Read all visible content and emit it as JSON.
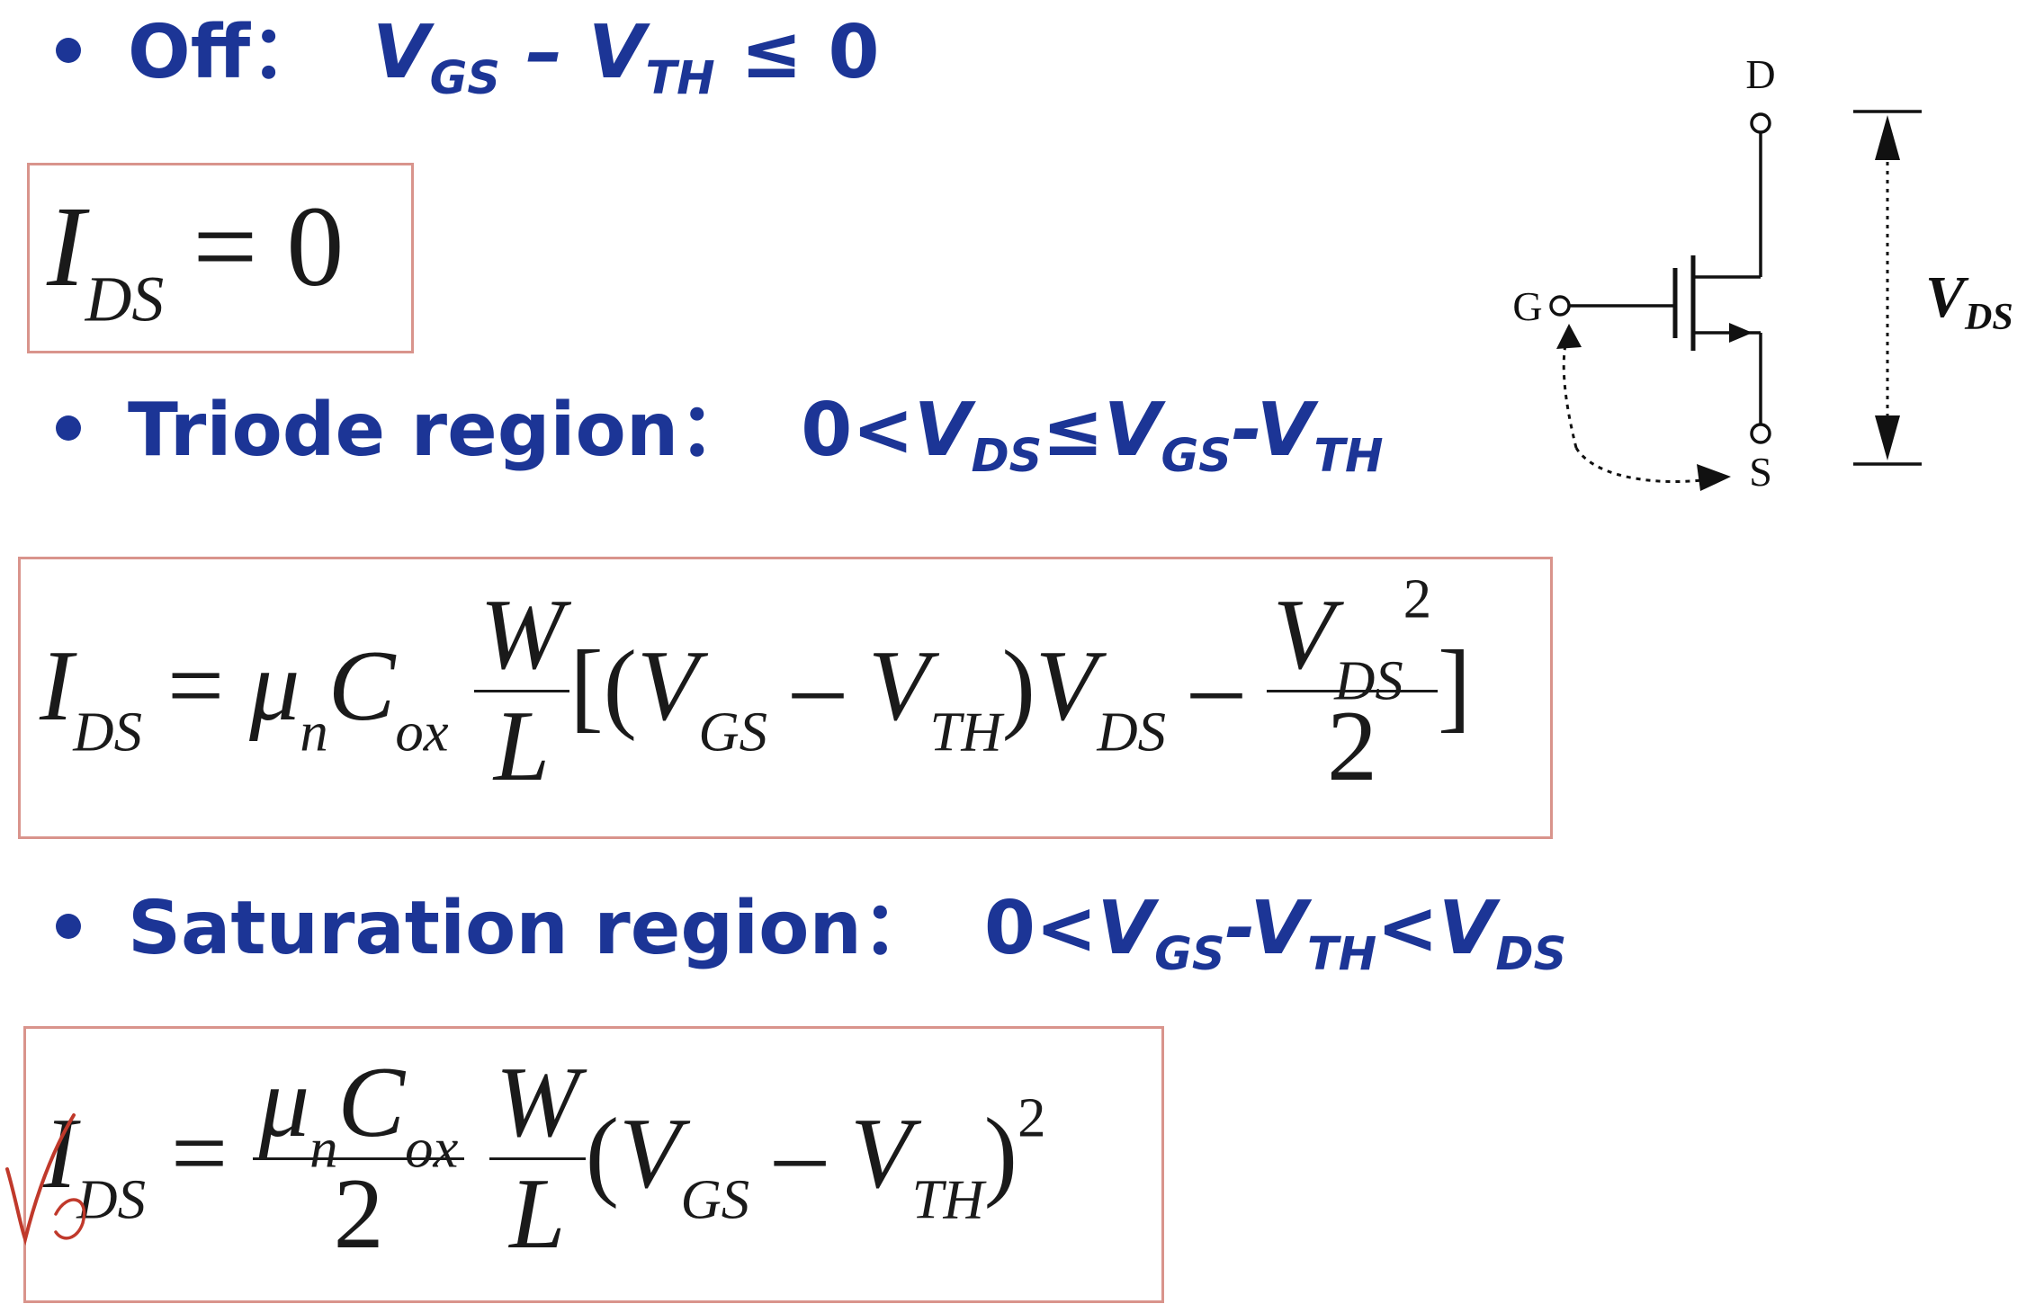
{
  "off": {
    "label": "Off：",
    "condition": {
      "v1": "V",
      "s1": "GS",
      "op": " – ",
      "v2": "V",
      "s2": "TH",
      "tail": " ≤ 0"
    }
  },
  "off_eq": {
    "lhs": "I",
    "lhs_sub": "DS",
    "rhs": " = 0"
  },
  "triode": {
    "label": "Triode region：",
    "condition": {
      "pre": "0<",
      "v1": "V",
      "s1": "DS",
      "op1": "≤",
      "v2": "V",
      "s2": "GS",
      "op2": "-",
      "v3": "V",
      "s3": "TH"
    }
  },
  "triode_eq": {
    "lhs": "I",
    "lhs_sub": "DS",
    "eq": " = ",
    "mu": "μ",
    "mu_sub": "n",
    "c": "C",
    "c_sub": "ox",
    "w": "W",
    "l": "L",
    "open": "[(",
    "vgs": "V",
    "vgs_sub": "GS",
    "minus": " – ",
    "vth": "V",
    "vth_sub": "TH",
    "close_paren": ")",
    "vds": "V",
    "vds_sub": "DS",
    "minus2": " – ",
    "frac_v": "V",
    "frac_sub": "DS",
    "frac_sup": "2",
    "frac_den": "2",
    "close": "]"
  },
  "sat": {
    "label": "Saturation region：",
    "condition": {
      "pre": "0<",
      "v1": "V",
      "s1": "GS",
      "op1": "-",
      "v2": "V",
      "s2": "TH",
      "op2": "<",
      "v3": "V",
      "s3": "DS"
    }
  },
  "sat_eq": {
    "lhs": "I",
    "lhs_sub": "DS",
    "eq": " = ",
    "mu": "μ",
    "mu_sub": "n",
    "c": "C",
    "c_sub": "ox",
    "den": "2",
    "w": "W",
    "l": "L",
    "open": "(",
    "vgs": "V",
    "vgs_sub": "GS",
    "minus": " – ",
    "vth": "V",
    "vth_sub": "TH",
    "close": ")",
    "exp": "2"
  },
  "circuit": {
    "drain": "D",
    "gate": "G",
    "source": "S",
    "vds": "V",
    "vds_sub": "DS"
  },
  "colors": {
    "heading": "#1c3596",
    "box_border": "#d9948c",
    "annotation": "#c0392b"
  }
}
